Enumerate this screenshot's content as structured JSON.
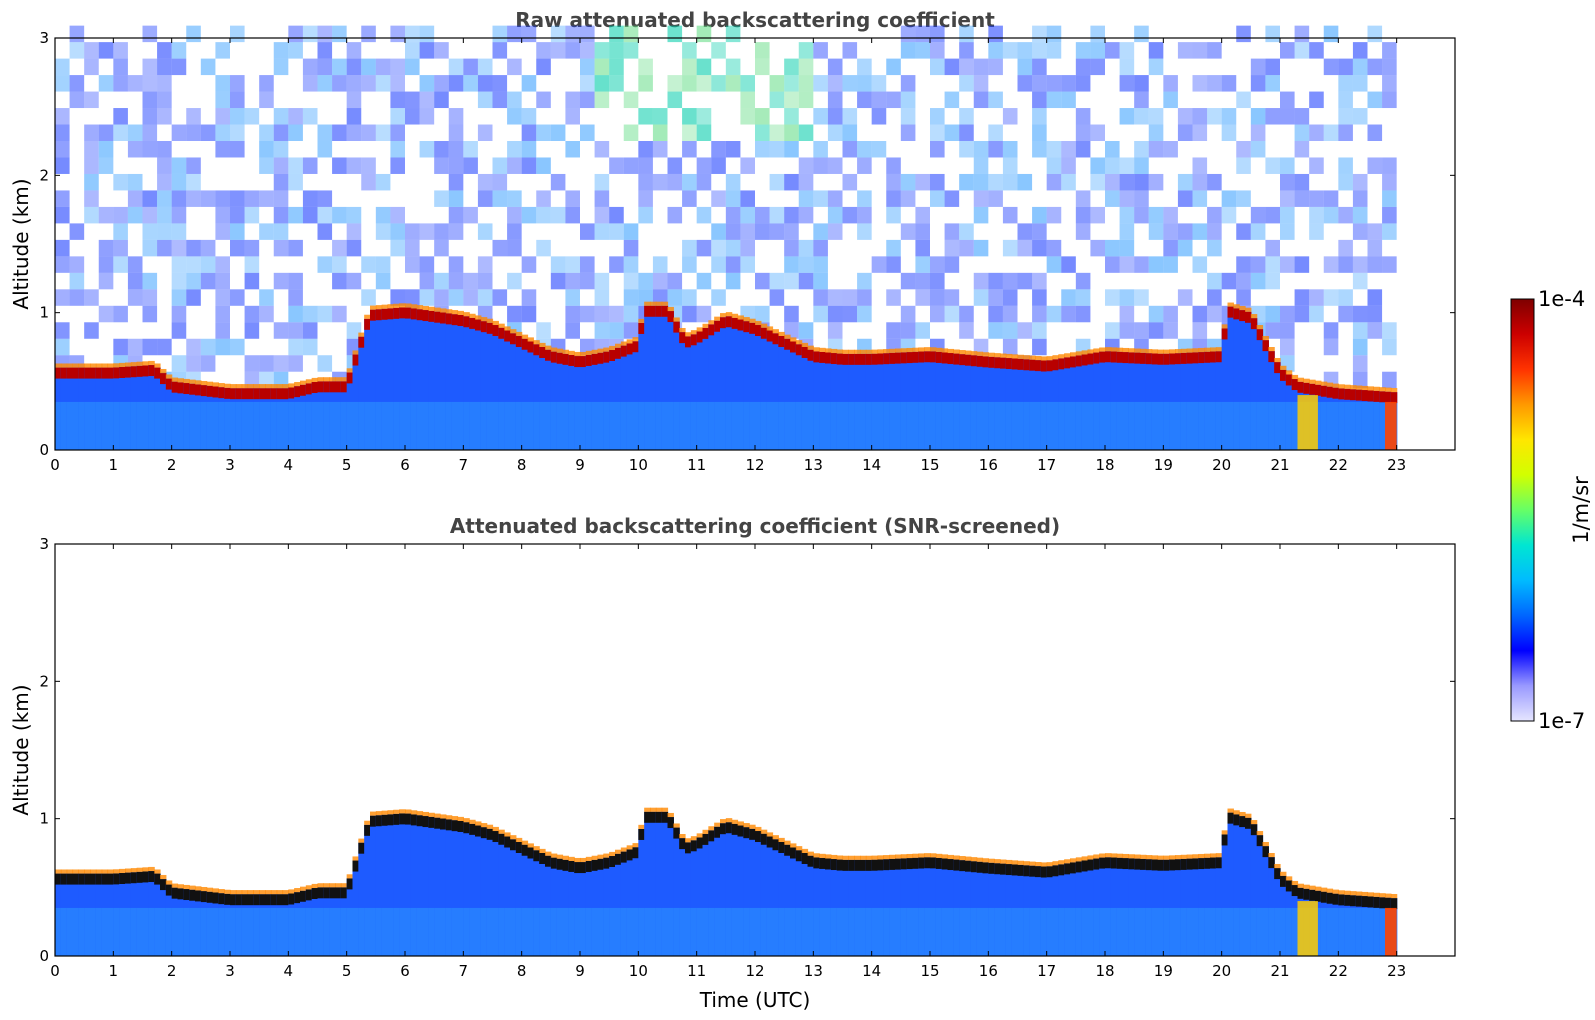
{
  "chart_data": [
    {
      "type": "heatmap",
      "title": "Raw attenuated backscattering coefficient",
      "ylabel": "Altitude (km)",
      "xlabel": "",
      "xlim": [
        0,
        24
      ],
      "ylim": [
        0,
        3
      ],
      "xticks": [
        "0",
        "1",
        "2",
        "3",
        "4",
        "5",
        "6",
        "7",
        "8",
        "9",
        "10",
        "11",
        "12",
        "13",
        "14",
        "15",
        "16",
        "17",
        "18",
        "19",
        "20",
        "21",
        "22",
        "23"
      ],
      "yticks": [
        "0",
        "1",
        "2",
        "3"
      ],
      "data_end_hour": 23,
      "layer_top_km": [
        [
          0,
          0.6
        ],
        [
          1,
          0.6
        ],
        [
          1.7,
          0.62
        ],
        [
          2,
          0.5
        ],
        [
          3,
          0.45
        ],
        [
          4,
          0.45
        ],
        [
          4.5,
          0.5
        ],
        [
          5,
          0.5
        ],
        [
          5.4,
          1.02
        ],
        [
          6,
          1.04
        ],
        [
          7,
          0.98
        ],
        [
          7.5,
          0.92
        ],
        [
          8,
          0.82
        ],
        [
          8.5,
          0.72
        ],
        [
          9,
          0.68
        ],
        [
          9.5,
          0.72
        ],
        [
          10,
          0.8
        ],
        [
          10.1,
          1.05
        ],
        [
          10.5,
          1.05
        ],
        [
          10.8,
          0.82
        ],
        [
          11,
          0.85
        ],
        [
          11.5,
          0.98
        ],
        [
          12,
          0.92
        ],
        [
          12.5,
          0.82
        ],
        [
          13,
          0.72
        ],
        [
          13.5,
          0.7
        ],
        [
          14,
          0.7
        ],
        [
          15,
          0.72
        ],
        [
          16,
          0.68
        ],
        [
          17,
          0.65
        ],
        [
          18,
          0.72
        ],
        [
          19,
          0.7
        ],
        [
          20,
          0.72
        ],
        [
          20.1,
          1.05
        ],
        [
          20.5,
          1.0
        ],
        [
          21,
          0.6
        ],
        [
          21.3,
          0.5
        ],
        [
          22,
          0.45
        ],
        [
          23,
          0.42
        ]
      ],
      "noise_region_km": [
        1,
        3
      ],
      "screened": false
    },
    {
      "type": "heatmap",
      "title": "Attenuated backscattering coefficient (SNR-screened)",
      "ylabel": "Altitude (km)",
      "xlabel": "Time (UTC)",
      "xlim": [
        0,
        24
      ],
      "ylim": [
        0,
        3
      ],
      "xticks": [
        "0",
        "1",
        "2",
        "3",
        "4",
        "5",
        "6",
        "7",
        "8",
        "9",
        "10",
        "11",
        "12",
        "13",
        "14",
        "15",
        "16",
        "17",
        "18",
        "19",
        "20",
        "21",
        "22",
        "23"
      ],
      "yticks": [
        "0",
        "1",
        "2",
        "3"
      ],
      "data_end_hour": 23,
      "screened": true
    }
  ],
  "colorbar": {
    "max_label": "1e-4",
    "min_label": "1e-7",
    "unit_label": "1/m/sr",
    "colors": [
      "#e6e6ff",
      "#9999ff",
      "#0000ff",
      "#0066ff",
      "#00bbff",
      "#00e6d2",
      "#66ff66",
      "#d2ff00",
      "#ffe600",
      "#ff9900",
      "#ff3300",
      "#cc0000",
      "#7f0000"
    ]
  }
}
